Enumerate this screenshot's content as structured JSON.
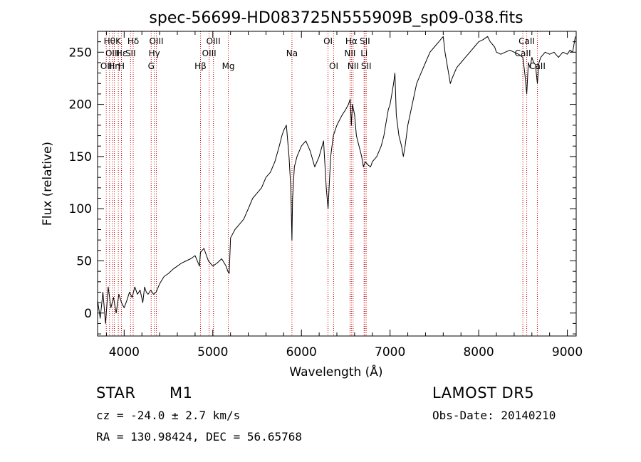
{
  "chart_data": {
    "type": "line",
    "title": "spec-56699-HD083725N555909B_sp09-038.fits",
    "xlabel": "Wavelength (Å)",
    "ylabel": "Flux (relative)",
    "xlim": [
      3700,
      9100
    ],
    "ylim": [
      -22,
      270
    ],
    "xticks": [
      4000,
      5000,
      6000,
      7000,
      8000,
      9000
    ],
    "yticks": [
      0,
      50,
      100,
      150,
      200,
      250
    ],
    "grid": false,
    "line_color": "#000000",
    "marker_color": "#cc0000",
    "series": [
      {
        "x": [
          3700,
          3730,
          3760,
          3790,
          3820,
          3850,
          3880,
          3910,
          3940,
          3970,
          4000,
          4030,
          4060,
          4090,
          4120,
          4150,
          4180,
          4210,
          4230,
          4250,
          4270,
          4300,
          4330,
          4360,
          4400,
          4450,
          4500,
          4550,
          4600,
          4650,
          4700,
          4750,
          4800,
          4850,
          4860,
          4880,
          4900,
          4950,
          5000,
          5050,
          5100,
          5150,
          5170,
          5185,
          5200,
          5250,
          5300,
          5350,
          5400,
          5450,
          5500,
          5550,
          5600,
          5650,
          5700,
          5750,
          5780,
          5800,
          5830,
          5860,
          5880,
          5893,
          5900,
          5920,
          5950,
          6000,
          6050,
          6100,
          6150,
          6200,
          6250,
          6280,
          6300,
          6330,
          6360,
          6380,
          6400,
          6430,
          6460,
          6500,
          6530,
          6550,
          6563,
          6575,
          6600,
          6620,
          6650,
          6680,
          6700,
          6720,
          6750,
          6780,
          6800,
          6850,
          6900,
          6930,
          6950,
          6980,
          7000,
          7020,
          7040,
          7055,
          7070,
          7100,
          7130,
          7150,
          7170,
          7200,
          7250,
          7300,
          7350,
          7400,
          7450,
          7500,
          7550,
          7600,
          7620,
          7640,
          7660,
          7680,
          7700,
          7750,
          7800,
          7850,
          7900,
          7950,
          8000,
          8050,
          8100,
          8130,
          8150,
          8180,
          8200,
          8250,
          8300,
          8350,
          8400,
          8450,
          8498,
          8520,
          8542,
          8560,
          8580,
          8600,
          8620,
          8640,
          8662,
          8680,
          8700,
          8750,
          8800,
          8850,
          8900,
          8950,
          9000,
          9030,
          9060,
          9090
        ],
        "y": [
          12,
          -5,
          20,
          -10,
          25,
          5,
          15,
          0,
          18,
          10,
          5,
          12,
          20,
          15,
          25,
          18,
          22,
          10,
          25,
          20,
          18,
          22,
          18,
          20,
          28,
          35,
          38,
          42,
          45,
          48,
          50,
          52,
          55,
          45,
          58,
          60,
          62,
          50,
          45,
          48,
          52,
          45,
          40,
          38,
          72,
          80,
          85,
          90,
          100,
          110,
          115,
          120,
          130,
          135,
          145,
          160,
          170,
          175,
          180,
          150,
          120,
          70,
          110,
          140,
          150,
          160,
          165,
          155,
          140,
          150,
          165,
          120,
          100,
          150,
          170,
          175,
          180,
          185,
          190,
          195,
          200,
          205,
          180,
          200,
          190,
          170,
          160,
          150,
          140,
          145,
          142,
          140,
          145,
          150,
          160,
          170,
          180,
          195,
          200,
          210,
          220,
          230,
          190,
          170,
          160,
          150,
          160,
          180,
          200,
          220,
          230,
          240,
          250,
          255,
          260,
          265,
          250,
          240,
          230,
          220,
          225,
          235,
          240,
          245,
          250,
          255,
          260,
          262,
          265,
          260,
          258,
          255,
          250,
          248,
          250,
          252,
          250,
          248,
          245,
          230,
          210,
          240,
          235,
          245,
          240,
          238,
          220,
          240,
          245,
          250,
          248,
          250,
          245,
          250,
          248,
          252,
          250,
          265
        ]
      }
    ],
    "lines": [
      {
        "x": 3798,
        "label": "OII",
        "row": 2
      },
      {
        "x": 3835,
        "label": "Hθ",
        "row": 0
      },
      {
        "x": 3869,
        "label": "OIII",
        "row": 1
      },
      {
        "x": 3889,
        "label": "Hη",
        "row": 2
      },
      {
        "x": 3934,
        "label": "K",
        "row": 0
      },
      {
        "x": 3969,
        "label": "H",
        "row": 2
      },
      {
        "x": 3970,
        "label": "Hε",
        "row": 1
      },
      {
        "x": 4072,
        "label": "SII",
        "row": 1
      },
      {
        "x": 4102,
        "label": "Hδ",
        "row": 0
      },
      {
        "x": 4305,
        "label": "G",
        "row": 2
      },
      {
        "x": 4340,
        "label": "Hγ",
        "row": 1
      },
      {
        "x": 4363,
        "label": "OIII",
        "row": 0
      },
      {
        "x": 4861,
        "label": "Hβ",
        "row": 2
      },
      {
        "x": 4959,
        "label": "OIII",
        "row": 1
      },
      {
        "x": 5007,
        "label": "OIII",
        "row": 0
      },
      {
        "x": 5175,
        "label": "Mg",
        "row": 2
      },
      {
        "x": 5893,
        "label": "Na",
        "row": 1
      },
      {
        "x": 6300,
        "label": "OI",
        "row": 0
      },
      {
        "x": 6364,
        "label": "OI",
        "row": 2
      },
      {
        "x": 6548,
        "label": "NII",
        "row": 1
      },
      {
        "x": 6563,
        "label": "Hα",
        "row": 0
      },
      {
        "x": 6583,
        "label": "NII",
        "row": 2
      },
      {
        "x": 6707,
        "label": "Li",
        "row": 1
      },
      {
        "x": 6716,
        "label": "SII",
        "row": 0
      },
      {
        "x": 6731,
        "label": "SII",
        "row": 2
      },
      {
        "x": 8498,
        "label": "CaII",
        "row": 1
      },
      {
        "x": 8542,
        "label": "CaII",
        "row": 0
      },
      {
        "x": 8662,
        "label": "CaII",
        "row": 2
      }
    ]
  },
  "info": {
    "class": "STAR",
    "subclass": "M1",
    "survey": "LAMOST DR5",
    "cz": "cz = -24.0 ± 2.7 km/s",
    "obs_date": "Obs-Date: 20140210",
    "radec": "RA = 130.98424, DEC =  56.65768"
  }
}
